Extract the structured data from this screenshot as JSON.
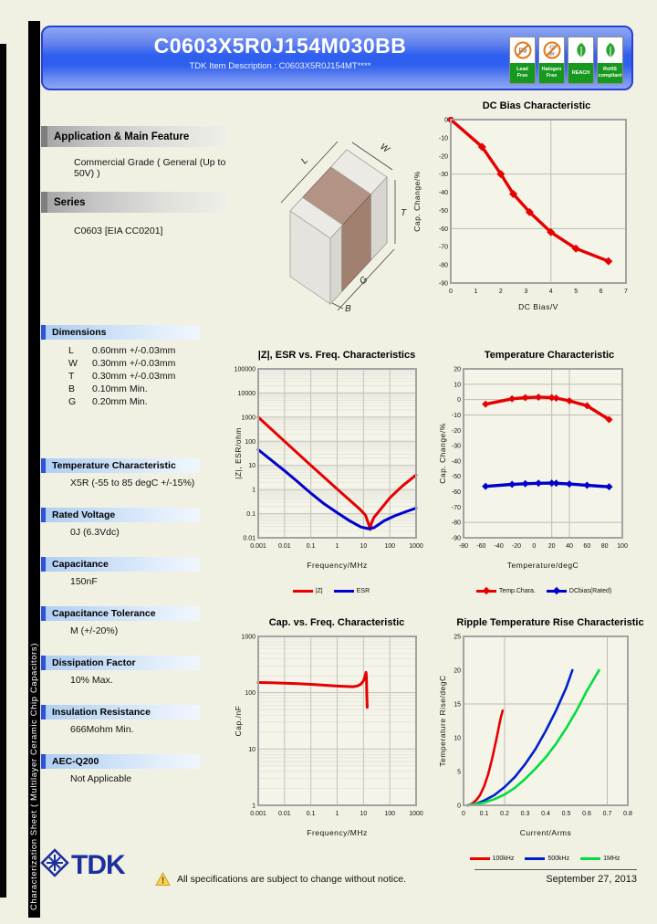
{
  "header": {
    "part_number": "C0603X5R0J154M030BB",
    "item_description": "TDK Item Description : C0603X5R0J154MT****",
    "badges": [
      {
        "icon": "pb-free-icon",
        "type": "crossed",
        "symbol": "Pb",
        "lines": [
          "Lead",
          "Free"
        ]
      },
      {
        "icon": "halogen-free-icon",
        "type": "crossed",
        "symbol": "Cl/Br",
        "lines": [
          "Halogen",
          "Free"
        ]
      },
      {
        "icon": "reach-leaf-icon",
        "type": "leaf",
        "lines": [
          "REACH"
        ]
      },
      {
        "icon": "rohs-leaf-icon",
        "type": "leaf",
        "lines": [
          "RoHS",
          "compliant"
        ]
      }
    ]
  },
  "sidebar_text": "Characterization Sheet ( Multilayer Ceramic Chip Capacitors)",
  "left_panel": {
    "application": {
      "title": "Application & Main Feature",
      "value": "Commercial Grade ( General (Up to 50V) )"
    },
    "series": {
      "title": "Series",
      "value": "C0603 [EIA CC0201]"
    },
    "dimensions": {
      "title": "Dimensions",
      "rows": [
        {
          "key": "L",
          "value": "0.60mm +/-0.03mm"
        },
        {
          "key": "W",
          "value": "0.30mm +/-0.03mm"
        },
        {
          "key": "T",
          "value": "0.30mm +/-0.03mm"
        },
        {
          "key": "B",
          "value": "0.10mm Min."
        },
        {
          "key": "G",
          "value": "0.20mm Min."
        }
      ]
    },
    "specs": [
      {
        "title": "Temperature Characteristic",
        "value": "X5R (-55 to 85 degC +/-15%)"
      },
      {
        "title": "Rated Voltage",
        "value": "0J (6.3Vdc)"
      },
      {
        "title": "Capacitance",
        "value": "150nF"
      },
      {
        "title": "Capacitance Tolerance",
        "value": "M (+/-20%)"
      },
      {
        "title": "Dissipation Factor",
        "value": "10% Max."
      },
      {
        "title": "Insulation Resistance",
        "value": "666Mohm Min."
      },
      {
        "title": "AEC-Q200",
        "value": "Not Applicable"
      }
    ]
  },
  "diagram": {
    "l": "L",
    "w": "W",
    "t": "T",
    "g": "G",
    "b": "B"
  },
  "footer": {
    "logo_text": "TDK",
    "warning_mark": "!",
    "notice": "All specifications are subject to change without notice.",
    "date": "September 27, 2013"
  },
  "chart_data": [
    {
      "id": "dc-bias",
      "type": "line",
      "title": "DC Bias Characteristic",
      "xlabel": "DC Bias/V",
      "ylabel": "Cap. Change/%",
      "xscale": "linear",
      "yscale": "linear",
      "xlim": [
        0,
        7
      ],
      "ylim": [
        -90,
        0
      ],
      "xticks": [
        0,
        1,
        2,
        3,
        4,
        5,
        6,
        7
      ],
      "yticks": [
        0,
        -10,
        -20,
        -30,
        -40,
        -50,
        -60,
        -70,
        -80,
        -90
      ],
      "xgrid": [
        4
      ],
      "ygrid": [
        -30,
        -60
      ],
      "series": [
        {
          "name": "DC Bias",
          "color": "#e60000",
          "marker": true,
          "x": [
            0,
            1.25,
            2,
            2.5,
            3.15,
            4,
            5,
            6.3
          ],
          "y": [
            0,
            -15,
            -30,
            -41,
            -51,
            -62,
            -71,
            -78
          ]
        }
      ],
      "legend": []
    },
    {
      "id": "z-esr",
      "type": "line",
      "title": "|Z|, ESR vs. Freq. Characteristics",
      "xlabel": "Frequency/MHz",
      "ylabel": "|Z|, ESR/ohm",
      "xscale": "log",
      "yscale": "log",
      "xlim": [
        0.001,
        1000
      ],
      "ylim": [
        0.01,
        100000
      ],
      "xticks": [
        0.001,
        0.01,
        0.1,
        1,
        10,
        100,
        1000
      ],
      "yticks": [
        0.01,
        0.1,
        1,
        10,
        100,
        1000,
        10000,
        100000
      ],
      "xgrid": [],
      "ygrid": [],
      "series": [
        {
          "name": "|Z|",
          "color": "#e60000",
          "marker": false,
          "x": [
            0.001,
            0.01,
            0.1,
            1,
            3,
            7,
            12,
            16,
            18,
            20,
            25,
            40,
            100,
            300,
            1000
          ],
          "y": [
            1000,
            100,
            10,
            1.05,
            0.36,
            0.16,
            0.085,
            0.035,
            0.022,
            0.04,
            0.07,
            0.13,
            0.45,
            1.4,
            4
          ]
        },
        {
          "name": "ESR",
          "color": "#0000cc",
          "marker": false,
          "x": [
            0.001,
            0.01,
            0.03,
            0.1,
            0.3,
            1,
            3,
            8,
            15,
            25,
            60,
            150,
            400,
            1000
          ],
          "y": [
            45,
            6,
            2.2,
            0.7,
            0.27,
            0.11,
            0.05,
            0.028,
            0.024,
            0.026,
            0.05,
            0.08,
            0.12,
            0.17
          ]
        }
      ],
      "legend": [
        "|Z|",
        "ESR"
      ]
    },
    {
      "id": "temp",
      "type": "line",
      "title": "Temperature Characteristic",
      "xlabel": "Temperature/degC",
      "ylabel": "Cap. Change/%",
      "xscale": "linear",
      "yscale": "linear",
      "xlim": [
        -80,
        100
      ],
      "ylim": [
        -90,
        20
      ],
      "xticks": [
        -80,
        -60,
        -40,
        -20,
        0,
        20,
        40,
        60,
        80,
        100
      ],
      "yticks": [
        20,
        10,
        0,
        -10,
        -20,
        -30,
        -40,
        -50,
        -60,
        -70,
        -80,
        -90
      ],
      "xgrid": [
        20,
        40
      ],
      "ygrid": [
        10,
        0,
        -10,
        -80
      ],
      "series": [
        {
          "name": "Temp.Chara.",
          "color": "#e60000",
          "marker": true,
          "x": [
            -55,
            -25,
            -10,
            5,
            20,
            25,
            40,
            60,
            85
          ],
          "y": [
            -3,
            0.5,
            1.3,
            1.6,
            1.3,
            1,
            -0.8,
            -4,
            -13
          ]
        },
        {
          "name": "DCbias(Rated)",
          "color": "#0000cc",
          "marker": true,
          "x": [
            -55,
            -25,
            -10,
            5,
            20,
            25,
            40,
            60,
            85
          ],
          "y": [
            -56.5,
            -55.2,
            -54.8,
            -54.5,
            -54.4,
            -54.5,
            -55,
            -55.8,
            -56.8
          ]
        }
      ],
      "legend": [
        "Temp.Chara.",
        "DCbias(Rated)"
      ]
    },
    {
      "id": "cap-freq",
      "type": "line",
      "title": "Cap. vs. Freq. Characteristic",
      "xlabel": "Frequency/MHz",
      "ylabel": "Cap./nF",
      "xscale": "log",
      "yscale": "log",
      "xlim": [
        0.001,
        1000
      ],
      "ylim": [
        1,
        1000
      ],
      "xticks": [
        0.001,
        0.01,
        0.1,
        1,
        10,
        100,
        1000
      ],
      "yticks": [
        1,
        10,
        100,
        1000
      ],
      "xgrid": [],
      "ygrid": [],
      "series": [
        {
          "name": "Cap.",
          "color": "#e60000",
          "marker": false,
          "x": [
            0.001,
            0.003,
            0.01,
            0.03,
            0.1,
            0.3,
            1,
            2,
            4,
            6,
            8,
            10,
            11.5,
            12.5,
            13,
            13.4,
            13.8
          ],
          "y": [
            152,
            150,
            148,
            145,
            141,
            136,
            131,
            129,
            128,
            132,
            142,
            163,
            195,
            230,
            190,
            90,
            55
          ]
        }
      ],
      "legend": []
    },
    {
      "id": "ripple",
      "type": "line",
      "title": "Ripple Temperature Rise Characteristic",
      "xlabel": "Current/Arms",
      "ylabel": "Temperature Rise/degC",
      "xscale": "linear",
      "yscale": "linear",
      "xlim": [
        0,
        0.8
      ],
      "ylim": [
        0,
        25
      ],
      "xticks": [
        0,
        0.1,
        0.2,
        0.3,
        0.4,
        0.5,
        0.6,
        0.7,
        0.8
      ],
      "yticks": [
        0,
        5,
        10,
        15,
        20,
        25
      ],
      "xgrid": [
        0.2,
        0.7
      ],
      "ygrid": [
        15
      ],
      "series": [
        {
          "name": "100kHz",
          "color": "#e60000",
          "marker": false,
          "x": [
            0.02,
            0.04,
            0.06,
            0.08,
            0.1,
            0.12,
            0.14,
            0.16,
            0.18,
            0.19
          ],
          "y": [
            0,
            0.2,
            0.7,
            1.5,
            2.8,
            4.6,
            7,
            9.8,
            12.8,
            14
          ]
        },
        {
          "name": "500kHz",
          "color": "#0020cc",
          "marker": false,
          "x": [
            0.02,
            0.06,
            0.1,
            0.15,
            0.2,
            0.25,
            0.3,
            0.35,
            0.4,
            0.45,
            0.5,
            0.53
          ],
          "y": [
            0,
            0.2,
            0.7,
            1.5,
            2.7,
            4.2,
            6.1,
            8.3,
            11,
            14,
            17.4,
            20
          ]
        },
        {
          "name": "1MHz",
          "color": "#00dd40",
          "marker": false,
          "x": [
            0.02,
            0.1,
            0.15,
            0.2,
            0.25,
            0.3,
            0.35,
            0.4,
            0.45,
            0.5,
            0.55,
            0.6,
            0.66
          ],
          "y": [
            0,
            0.4,
            0.9,
            1.6,
            2.6,
            3.9,
            5.4,
            7.1,
            9.1,
            11.4,
            14,
            16.9,
            20
          ]
        }
      ],
      "legend": [
        "100kHz",
        "500kHz",
        "1MHz"
      ]
    }
  ]
}
